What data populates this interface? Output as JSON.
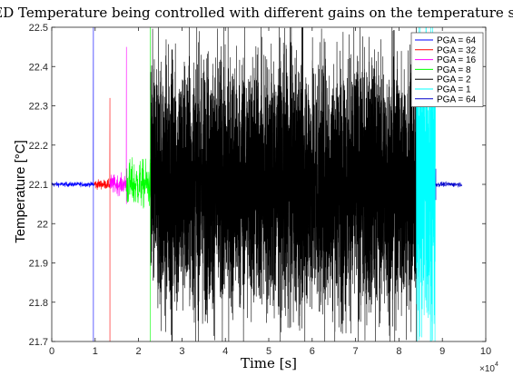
{
  "chart_data": {
    "type": "line",
    "title": "LED Temperature being controlled with different gains on the temperature sensor",
    "xlabel": "Time [s]",
    "ylabel": "Temperature [°C]",
    "x_multiplier": "×10",
    "x_multiplier_exp": "4",
    "xlim": [
      0,
      100000
    ],
    "ylim": [
      21.7,
      22.5
    ],
    "x_ticks": [
      0,
      10000,
      20000,
      30000,
      40000,
      50000,
      60000,
      70000,
      80000,
      90000,
      100000
    ],
    "x_tick_labels": [
      "0",
      "1",
      "2",
      "3",
      "4",
      "5",
      "6",
      "7",
      "8",
      "9",
      "10"
    ],
    "y_ticks": [
      21.7,
      21.8,
      21.9,
      22.0,
      22.1,
      22.2,
      22.3,
      22.4,
      22.5
    ],
    "y_tick_labels": [
      "21.7",
      "21.8",
      "21.9",
      "22",
      "22.1",
      "22.2",
      "22.3",
      "22.4",
      "22.5"
    ],
    "grid": false,
    "legend_position": "top-right",
    "series": [
      {
        "name": "PGA = 64",
        "color": "#0000ff",
        "x_range": [
          0,
          9800
        ],
        "mean": 22.1,
        "noise": 0.003,
        "transient": [
          9600,
          22.5,
          21.7
        ]
      },
      {
        "name": "PGA = 32",
        "color": "#ff0000",
        "x_range": [
          9800,
          13400
        ],
        "mean": 22.1,
        "noise": 0.006,
        "transient": [
          13400,
          22.32,
          21.7
        ]
      },
      {
        "name": "PGA = 16",
        "color": "#ff00ff",
        "x_range": [
          13400,
          17200
        ],
        "mean": 22.1,
        "noise": 0.012,
        "transient": [
          17200,
          22.45,
          22.05
        ]
      },
      {
        "name": "PGA = 8",
        "color": "#00ff00",
        "x_range": [
          17200,
          22800
        ],
        "mean": 22.1,
        "noise": 0.03,
        "transient": [
          22700,
          22.5,
          21.7
        ]
      },
      {
        "name": "PGA = 2",
        "color": "#000000",
        "x_range": [
          22800,
          84000
        ],
        "mean": 22.1,
        "noise": 0.16,
        "transient": [
          84000,
          22.5,
          21.7
        ]
      },
      {
        "name": "PGA = 1",
        "color": "#00ffff",
        "x_range": [
          84000,
          88400
        ],
        "mean": 22.1,
        "noise": 0.18,
        "transient": [
          88300,
          22.0,
          21.7
        ]
      },
      {
        "name": "PGA = 64",
        "color": "#0000cc",
        "x_range": [
          88400,
          94500
        ],
        "mean": 22.1,
        "noise": 0.003,
        "transient": [
          88500,
          22.14,
          22.06
        ]
      }
    ]
  }
}
